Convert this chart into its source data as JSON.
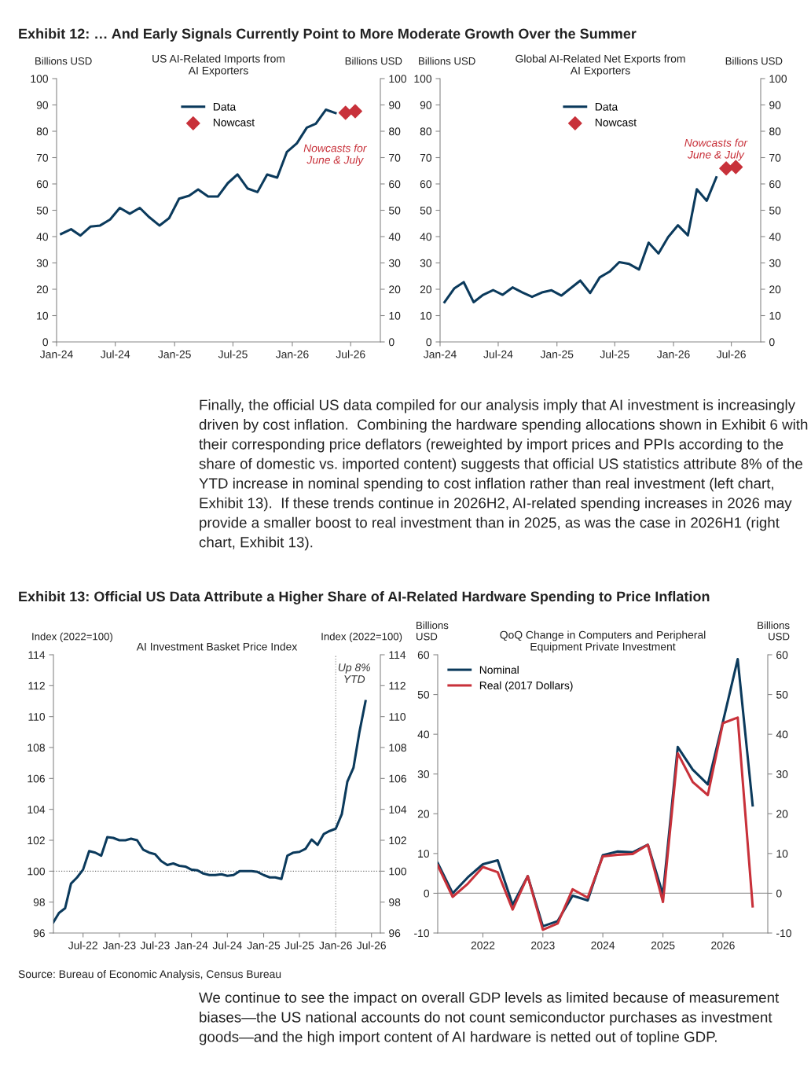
{
  "chart_data": [
    {
      "type": "other",
      "annotations": [
        "Exhibit 12: … And Early Signals Currently Point to More Moderate Growth Over the Summer"
      ]
    },
    {
      "type": "line",
      "title": "US AI-Related Imports from\nAI Exporters",
      "ylabel": "Billions USD",
      "y2label": "Billions USD",
      "x": [
        "2024-01-15",
        "2024-02-15",
        "2024-03-15",
        "2024-04-15",
        "2024-05-15",
        "2024-06-15",
        "2024-07-15",
        "2024-08-15",
        "2024-09-15",
        "2024-10-15",
        "2024-11-15",
        "2024-12-15",
        "2025-01-15",
        "2025-02-15",
        "2025-03-15",
        "2025-04-15",
        "2025-05-15",
        "2025-06-15",
        "2025-07-15",
        "2025-08-15",
        "2025-09-15",
        "2025-10-15",
        "2025-11-15",
        "2025-12-15",
        "2026-01-15",
        "2026-02-15",
        "2026-03-15",
        "2026-04-15",
        "2026-05-15"
      ],
      "series": [
        {
          "name": "Data",
          "type": "line",
          "color": "#0b3a5c",
          "marker": "none",
          "values": [
            41,
            42.8,
            40.4,
            43.8,
            44.2,
            46.5,
            50.9,
            48.7,
            50.9,
            47.3,
            44.2,
            47,
            54.4,
            55.5,
            57.9,
            55.2,
            55.2,
            60.3,
            63.6,
            58.3,
            56.9,
            63.6,
            62.4,
            72.1,
            75.4,
            81.4,
            82.9,
            88.2,
            86.9
          ]
        },
        {
          "name": "Nowcast",
          "type": "scatter",
          "color": "#c8313a",
          "marker": "diamond",
          "x": [
            "2026-06-15",
            "2026-07-15"
          ],
          "values": [
            87,
            87.6
          ]
        }
      ],
      "xlim": [
        "2024-01-01",
        "2026-10-01"
      ],
      "xticks": [
        {
          "value": "2024-01-01",
          "label": "Jan-24"
        },
        {
          "value": "2024-07-01",
          "label": "Jul-24"
        },
        {
          "value": "2025-01-01",
          "label": "Jan-25"
        },
        {
          "value": "2025-07-01",
          "label": "Jul-25"
        },
        {
          "value": "2026-01-01",
          "label": "Jan-26"
        },
        {
          "value": "2026-07-01",
          "label": "Jul-26"
        }
      ],
      "ylim": [
        0,
        100
      ],
      "yticks": [
        0,
        10,
        20,
        30,
        40,
        50,
        60,
        70,
        80,
        90,
        100
      ],
      "y2lim": [
        0,
        100
      ],
      "y2ticks": [
        0,
        10,
        20,
        30,
        40,
        50,
        60,
        70,
        80,
        90,
        100
      ],
      "legend": "top",
      "annotations": [
        "Nowcasts for\nJune & July"
      ]
    },
    {
      "type": "line",
      "title": "Global AI-Related Net Exports from\nAI Exporters",
      "ylabel": "Billions USD",
      "y2label": "Billions USD",
      "x": [
        "2024-01-15",
        "2024-02-15",
        "2024-03-15",
        "2024-04-15",
        "2024-05-15",
        "2024-06-15",
        "2024-07-15",
        "2024-08-15",
        "2024-09-15",
        "2024-10-15",
        "2024-11-15",
        "2024-12-15",
        "2025-01-15",
        "2025-02-15",
        "2025-03-15",
        "2025-04-15",
        "2025-05-15",
        "2025-06-15",
        "2025-07-15",
        "2025-08-15",
        "2025-09-15",
        "2025-10-15",
        "2025-11-15",
        "2025-12-15",
        "2026-01-15",
        "2026-02-15",
        "2026-03-15",
        "2026-04-15",
        "2026-05-15"
      ],
      "series": [
        {
          "name": "Data",
          "type": "line",
          "color": "#0b3a5c",
          "marker": "none",
          "values": [
            15.1,
            20.4,
            22.7,
            15.1,
            17.9,
            19.7,
            17.9,
            20.7,
            18.8,
            17.1,
            18.8,
            19.6,
            17.6,
            20.6,
            23.3,
            18.6,
            24.5,
            26.7,
            30.3,
            29.6,
            27.5,
            37.7,
            33.6,
            39.8,
            44.3,
            40.5,
            58,
            53.6,
            62.5
          ]
        },
        {
          "name": "Nowcast",
          "type": "scatter",
          "color": "#c8313a",
          "marker": "diamond",
          "x": [
            "2026-06-15",
            "2026-07-15"
          ],
          "values": [
            65.9,
            66.4
          ]
        }
      ],
      "xlim": [
        "2024-01-01",
        "2026-10-01"
      ],
      "xticks": [
        {
          "value": "2024-01-01",
          "label": "Jan-24"
        },
        {
          "value": "2024-07-01",
          "label": "Jul-24"
        },
        {
          "value": "2025-01-01",
          "label": "Jan-25"
        },
        {
          "value": "2025-07-01",
          "label": "Jul-25"
        },
        {
          "value": "2026-01-01",
          "label": "Jan-26"
        },
        {
          "value": "2026-07-01",
          "label": "Jul-26"
        }
      ],
      "ylim": [
        0,
        100
      ],
      "yticks": [
        0,
        10,
        20,
        30,
        40,
        50,
        60,
        70,
        80,
        90,
        100
      ],
      "y2lim": [
        0,
        100
      ],
      "y2ticks": [
        0,
        10,
        20,
        30,
        40,
        50,
        60,
        70,
        80,
        90,
        100
      ],
      "legend": "top",
      "annotations": [
        "Nowcasts for\nJune & July"
      ]
    },
    {
      "type": "other",
      "annotations": [
        "Finally, the official US data compiled for our analysis imply that AI investment is increasingly driven by cost inflation.  Combining the hardware spending allocations shown in Exhibit 6 with their corresponding price deflators (reweighted by import prices and PPIs according to the share of domestic vs. imported content) suggests that official US statistics attribute 8% of the YTD increase in nominal spending to cost inflation rather than real investment (left chart, Exhibit 13).  If these trends continue in 2026H2, AI-related spending increases in 2026 may provide a smaller boost to real investment than in 2025, as was the case in 2026H1 (right chart, Exhibit 13)."
      ]
    },
    {
      "type": "other",
      "annotations": [
        "Exhibit 13: Official US Data Attribute a Higher Share of AI-Related Hardware Spending to Price Inflation"
      ]
    },
    {
      "type": "line",
      "title": "AI Investment Basket Price Index",
      "ylabel": "Index (2022=100)",
      "y2label": "Index (2022=100)",
      "x": [
        "2022-02-01",
        "2022-03-01",
        "2022-04-01",
        "2022-05-01",
        "2022-06-01",
        "2022-07-01",
        "2022-08-01",
        "2022-09-01",
        "2022-10-01",
        "2022-11-01",
        "2022-12-01",
        "2023-01-01",
        "2023-02-01",
        "2023-03-01",
        "2023-04-01",
        "2023-05-01",
        "2023-06-01",
        "2023-07-01",
        "2023-08-01",
        "2023-09-01",
        "2023-10-01",
        "2023-11-01",
        "2023-12-01",
        "2024-01-01",
        "2024-02-01",
        "2024-03-01",
        "2024-04-01",
        "2024-05-01",
        "2024-06-01",
        "2024-07-01",
        "2024-08-01",
        "2024-09-01",
        "2024-10-01",
        "2024-11-01",
        "2024-12-01",
        "2025-01-01",
        "2025-02-01",
        "2025-03-01",
        "2025-04-01",
        "2025-05-01",
        "2025-06-01",
        "2025-07-01",
        "2025-08-01",
        "2025-09-01",
        "2025-10-01",
        "2025-11-01",
        "2025-12-01",
        "2026-01-01",
        "2026-02-01",
        "2026-03-01",
        "2026-04-01",
        "2026-05-01",
        "2026-06-01"
      ],
      "series": [
        {
          "type": "line",
          "color": "#0b3a5c",
          "marker": "none",
          "values": [
            96.7,
            97.3,
            97.6,
            99.2,
            99.6,
            100.1,
            101.3,
            101.2,
            101.0,
            102.2,
            102.15,
            102.0,
            102.0,
            102.1,
            102.0,
            101.4,
            101.2,
            101.1,
            100.65,
            100.4,
            100.5,
            100.35,
            100.3,
            100.1,
            100.05,
            99.85,
            99.75,
            99.75,
            99.8,
            99.7,
            99.75,
            100.0,
            100.0,
            100.0,
            99.95,
            99.75,
            99.6,
            99.6,
            99.5,
            101.0,
            101.2,
            101.25,
            101.45,
            102.05,
            101.7,
            102.4,
            102.6,
            102.75,
            103.7,
            105.8,
            106.7,
            109.0,
            111.0
          ]
        }
      ],
      "xlim": [
        "2022-02-01",
        "2026-08-15"
      ],
      "xticks": [
        {
          "value": "2022-07-01",
          "label": "Jul-22"
        },
        {
          "value": "2023-01-01",
          "label": "Jan-23"
        },
        {
          "value": "2023-07-01",
          "label": "Jul-23"
        },
        {
          "value": "2024-01-01",
          "label": "Jan-24"
        },
        {
          "value": "2024-07-01",
          "label": "Jul-24"
        },
        {
          "value": "2025-01-01",
          "label": "Jan-25"
        },
        {
          "value": "2025-07-01",
          "label": "Jul-25"
        },
        {
          "value": "2026-01-01",
          "label": "Jan-26"
        },
        {
          "value": "2026-07-01",
          "label": "Jul-26"
        }
      ],
      "ylim": [
        96,
        114
      ],
      "yticks": [
        96,
        98,
        100,
        102,
        104,
        106,
        108,
        110,
        112,
        114
      ],
      "y2lim": [
        96,
        114
      ],
      "y2ticks": [
        96,
        98,
        100,
        102,
        104,
        106,
        108,
        110,
        112,
        114
      ],
      "ref_lines": [
        {
          "axis": "y",
          "value": 100,
          "color": "#777777",
          "line_style": "dotted"
        },
        {
          "axis": "x",
          "value": "2026-01-01",
          "color": "#999999",
          "line_style": "dotted"
        }
      ],
      "annotations": [
        "Up 8%\nYTD"
      ]
    },
    {
      "type": "line",
      "title": "QoQ Change in Computers and Peripheral\nEquipment Private Investment",
      "ylabel": "Billions\nUSD",
      "y2label": "Billions\nUSD",
      "x": [
        "2021-04-01",
        "2021-07-01",
        "2021-10-01",
        "2022-01-01",
        "2022-04-01",
        "2022-07-01",
        "2022-10-01",
        "2023-01-01",
        "2023-04-01",
        "2023-07-01",
        "2023-10-01",
        "2024-01-01",
        "2024-04-01",
        "2024-07-01",
        "2024-10-01",
        "2025-01-01",
        "2025-04-01",
        "2025-07-01",
        "2025-10-01",
        "2026-01-01",
        "2026-04-01",
        "2026-07-01"
      ],
      "series": [
        {
          "name": "Nominal",
          "type": "line",
          "color": "#0b3a5c",
          "marker": "none",
          "values": [
            7.6,
            0,
            4.0,
            7.3,
            8.3,
            -2.9,
            4.3,
            -8.3,
            -7.0,
            -0.6,
            -1.8,
            9.6,
            10.5,
            10.3,
            12.2,
            -0.3,
            36.8,
            31.1,
            27.4,
            43.1,
            58.9,
            22.1
          ]
        },
        {
          "name": "Real (2017 Dollars)",
          "type": "line",
          "color": "#c8313a",
          "marker": "none",
          "values": [
            7.0,
            -0.9,
            2.4,
            6.6,
            5.3,
            -4.1,
            4.3,
            -9.2,
            -7.6,
            1.0,
            -1.1,
            9.3,
            9.7,
            9.9,
            12.2,
            -2.2,
            35.2,
            28.0,
            24.7,
            42.8,
            44.2,
            -3.3
          ]
        }
      ],
      "xlim": [
        "2021-04-01",
        "2026-10-01"
      ],
      "xticks": [
        {
          "value": "2022-01-01",
          "label": "2022"
        },
        {
          "value": "2023-01-01",
          "label": "2023"
        },
        {
          "value": "2024-01-01",
          "label": "2024"
        },
        {
          "value": "2025-01-01",
          "label": "2025"
        },
        {
          "value": "2026-01-01",
          "label": "2026"
        }
      ],
      "ylim": [
        -10,
        60
      ],
      "yticks": [
        -10,
        0,
        10,
        20,
        30,
        40,
        50,
        60
      ],
      "y2lim": [
        -10,
        60
      ],
      "y2ticks": [
        -10,
        0,
        10,
        20,
        30,
        40,
        50,
        60
      ],
      "ref_lines": [
        {
          "axis": "y",
          "value": 0,
          "color": "#999999",
          "line_style": "solid"
        }
      ],
      "legend": "top left"
    },
    {
      "type": "other",
      "annotations": [
        "Source: Bureau of Economic Analysis, Census Bureau"
      ]
    },
    {
      "type": "other",
      "annotations": [
        "We continue to see the impact on overall GDP levels as limited because of measurement biases—the US national accounts do not count semiconductor purchases as investment goods—and the high import content of AI hardware is netted out of topline GDP."
      ]
    }
  ]
}
